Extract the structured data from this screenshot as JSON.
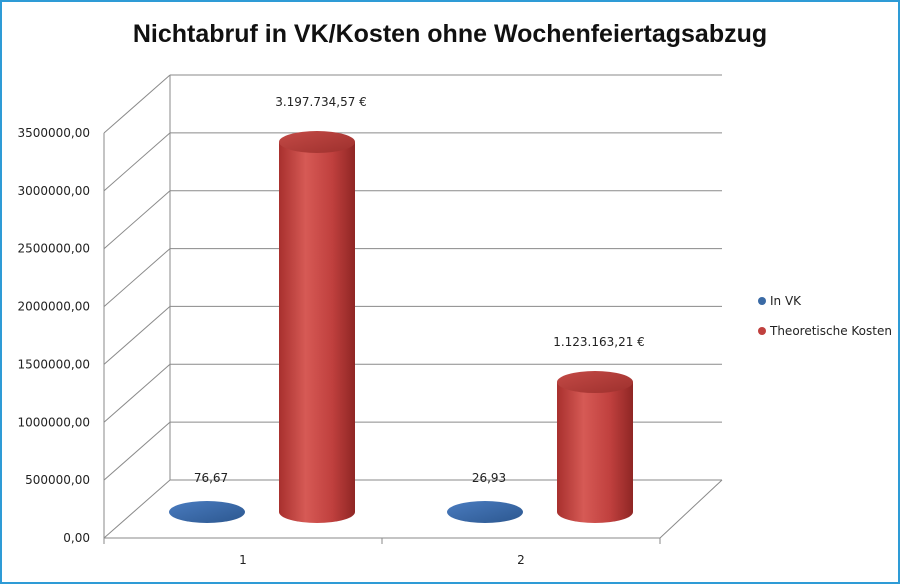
{
  "colors": {
    "border": "#2e9bd6",
    "series_in_vk": "#3a6aa5",
    "series_kosten": "#c0403e"
  },
  "chart_data": {
    "type": "bar",
    "style": "3d-cylinder",
    "title": "Nichtabruf in VK/Kosten ohne Wochenfeiertagsabzug",
    "categories": [
      "1",
      "2"
    ],
    "series": [
      {
        "name": "In VK",
        "values": [
          76.67,
          26.93
        ],
        "labels": [
          "76,67",
          "26,93"
        ]
      },
      {
        "name": "Theoretische Kosten",
        "values": [
          3197734.57,
          1123163.21
        ],
        "labels": [
          "3.197.734,57 €",
          "1.123.163,21 €"
        ]
      }
    ],
    "ylim": [
      0,
      3500000
    ],
    "yticks": [
      "0,00",
      "500000,00",
      "1000000,00",
      "1500000,00",
      "2000000,00",
      "2500000,00",
      "3000000,00",
      "3500000,00"
    ],
    "grid": true,
    "legend_position": "right"
  }
}
